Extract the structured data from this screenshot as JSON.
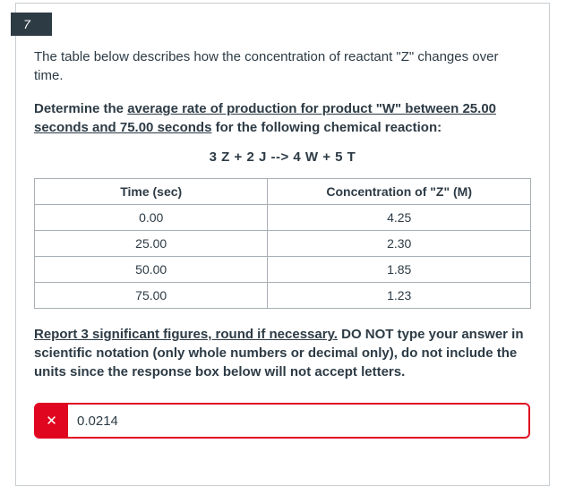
{
  "question": {
    "number": "7",
    "intro": "The table below describes how the concentration of reactant \"Z\" changes over time.",
    "prompt_prefix": "Determine the ",
    "prompt_underlined": "average rate of production for product \"W\" between 25.00 seconds and 75.00 seconds",
    "prompt_suffix": " for the following chemical reaction:",
    "equation": "3 Z + 2 J --> 4 W + 5 T",
    "instructions_underlined": "Report 3 significant figures, round if necessary.",
    "instructions_rest": " DO NOT type your answer in scientific notation (only whole numbers or decimal only), do not include the units since the response box below will not accept letters."
  },
  "chart_data": {
    "type": "table",
    "title": "Concentration of reactant Z over time",
    "categories": [
      "Time (sec)",
      "Concentration of \"Z\" (M)"
    ],
    "rows": [
      [
        "0.00",
        "4.25"
      ],
      [
        "25.00",
        "2.30"
      ],
      [
        "50.00",
        "1.85"
      ],
      [
        "75.00",
        "1.23"
      ]
    ]
  },
  "table": {
    "headers": [
      "Time (sec)",
      "Concentration of \"Z\" (M)"
    ],
    "rows": [
      [
        "0.00",
        "4.25"
      ],
      [
        "25.00",
        "2.30"
      ],
      [
        "50.00",
        "1.85"
      ],
      [
        "75.00",
        "1.23"
      ]
    ]
  },
  "answer": {
    "value": "0.0214",
    "status": "incorrect",
    "status_icon": "x-mark"
  },
  "colors": {
    "error_red": "#E0061F",
    "badge_bg": "#2D3B45",
    "text": "#2D3B45",
    "panel_border": "#C7CDD1",
    "table_border": "#a9b0b5"
  }
}
